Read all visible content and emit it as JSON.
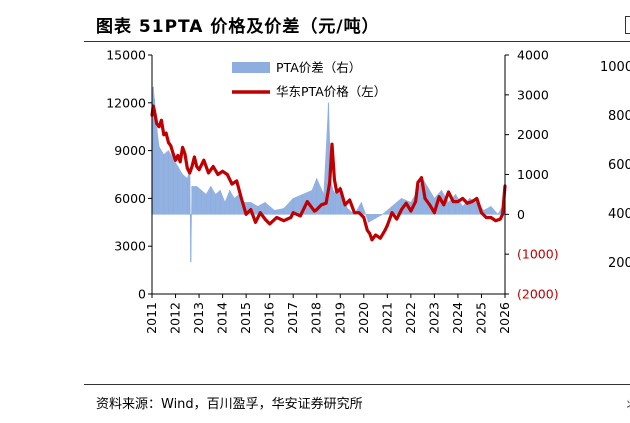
{
  "header": {
    "title": "图表 51PTA 价格及价差（元/吨）",
    "source": "资料来源：Wind，百川盈孚，华安证券研究所"
  },
  "side_fragments": [
    "1000",
    "800",
    "600",
    "400",
    "200"
  ],
  "edge_glyph": "丬",
  "chart_data": {
    "type": "line",
    "title": "PTA价格及价差（元/吨）",
    "x_ticks": [
      "2011",
      "2012",
      "2013",
      "2014",
      "2015",
      "2016",
      "2017",
      "2018",
      "2019",
      "2020",
      "2021",
      "2022",
      "2023",
      "2024",
      "2025",
      "2026"
    ],
    "xlim": [
      2011.0,
      2026.0
    ],
    "left_axis": {
      "ylim": [
        0,
        15000
      ],
      "ticks": [
        "0",
        "3000",
        "6000",
        "9000",
        "12000",
        "15000"
      ]
    },
    "right_axis": {
      "ylim": [
        -2000,
        4000
      ],
      "ticks": [
        "(2000)",
        "(1000)",
        "0",
        "1000",
        "2000",
        "3000",
        "4000"
      ]
    },
    "legend": [
      "PTA价差（右）",
      "华东PTA价格（左）"
    ],
    "colors": {
      "spread": "#8eaee0",
      "price": "#c00000"
    },
    "series": [
      {
        "name": "华东PTA价格（左）",
        "axis": "left",
        "x": [
          2011.0,
          2011.05,
          2011.1,
          2011.2,
          2011.3,
          2011.4,
          2011.5,
          2011.6,
          2011.7,
          2011.8,
          2011.9,
          2012.0,
          2012.1,
          2012.2,
          2012.3,
          2012.4,
          2012.5,
          2012.6,
          2012.7,
          2012.8,
          2012.9,
          2013.0,
          2013.2,
          2013.4,
          2013.6,
          2013.8,
          2014.0,
          2014.2,
          2014.4,
          2014.6,
          2014.8,
          2015.0,
          2015.2,
          2015.4,
          2015.6,
          2015.8,
          2016.0,
          2016.3,
          2016.6,
          2016.9,
          2017.0,
          2017.3,
          2017.6,
          2017.9,
          2018.0,
          2018.2,
          2018.4,
          2018.55,
          2018.65,
          2018.75,
          2018.85,
          2019.0,
          2019.2,
          2019.4,
          2019.6,
          2019.8,
          2020.0,
          2020.15,
          2020.25,
          2020.35,
          2020.5,
          2020.7,
          2020.9,
          2021.0,
          2021.2,
          2021.4,
          2021.6,
          2021.8,
          2022.0,
          2022.2,
          2022.3,
          2022.45,
          2022.6,
          2022.8,
          2023.0,
          2023.2,
          2023.4,
          2023.6,
          2023.8,
          2024.0,
          2024.2,
          2024.4,
          2024.6,
          2024.8,
          2025.0,
          2025.2,
          2025.4,
          2025.6,
          2025.8,
          2025.9,
          2026.0
        ],
        "values": [
          11200,
          11800,
          11500,
          10700,
          10500,
          10900,
          10000,
          10100,
          9500,
          9300,
          8800,
          8400,
          8700,
          8300,
          9200,
          8800,
          7900,
          7600,
          8000,
          8600,
          8000,
          7800,
          8400,
          7600,
          8000,
          7500,
          7700,
          7500,
          6900,
          7100,
          6000,
          5000,
          5300,
          4500,
          5100,
          4700,
          4400,
          4800,
          4600,
          4800,
          5100,
          4900,
          5800,
          5200,
          5300,
          5600,
          5700,
          7000,
          9400,
          7200,
          6400,
          6600,
          5600,
          5900,
          5100,
          5100,
          4800,
          4000,
          3800,
          3400,
          3700,
          3500,
          4000,
          4300,
          5100,
          4700,
          5300,
          5700,
          5200,
          5800,
          7000,
          7300,
          6000,
          5600,
          5100,
          6100,
          5600,
          6400,
          5800,
          5800,
          6000,
          5700,
          5800,
          6000,
          5100,
          4800,
          4800,
          4600,
          4700,
          5000,
          6800
        ]
      },
      {
        "name": "PTA价差（右）",
        "axis": "right",
        "x": [
          2011.0,
          2011.05,
          2011.1,
          2011.2,
          2011.3,
          2011.5,
          2011.7,
          2011.9,
          2012.1,
          2012.3,
          2012.5,
          2012.6,
          2012.65,
          2012.7,
          2012.9,
          2013.1,
          2013.3,
          2013.5,
          2013.7,
          2013.9,
          2014.1,
          2014.3,
          2014.5,
          2014.7,
          2014.9,
          2015.2,
          2015.5,
          2015.8,
          2016.2,
          2016.6,
          2017.0,
          2017.4,
          2017.8,
          2018.0,
          2018.3,
          2018.5,
          2018.6,
          2018.7,
          2018.8,
          2019.0,
          2019.3,
          2019.6,
          2019.9,
          2020.2,
          2020.5,
          2020.8,
          2021.2,
          2021.6,
          2022.0,
          2022.3,
          2022.5,
          2022.7,
          2023.0,
          2023.3,
          2023.6,
          2023.9,
          2024.2,
          2024.5,
          2024.8,
          2025.1,
          2025.4,
          2025.7,
          2026.0
        ],
        "values": [
          2500,
          3200,
          2900,
          2200,
          1700,
          1500,
          1600,
          1400,
          1200,
          1000,
          900,
          1100,
          -1200,
          700,
          700,
          600,
          500,
          700,
          500,
          600,
          300,
          600,
          400,
          500,
          300,
          300,
          200,
          300,
          100,
          150,
          400,
          500,
          600,
          900,
          500,
          2800,
          800,
          600,
          500,
          700,
          150,
          0,
          300,
          -200,
          -100,
          0,
          200,
          400,
          300,
          600,
          900,
          700,
          400,
          600,
          300,
          500,
          200,
          400,
          300,
          100,
          200,
          0,
          300
        ]
      }
    ]
  }
}
